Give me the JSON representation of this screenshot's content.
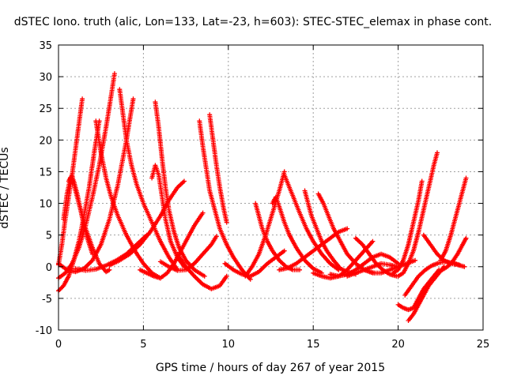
{
  "chart_data": {
    "type": "scatter",
    "title": "dSTEC Iono. truth (alic, Lon=133, Lat=-23, h=603): STEC-STEC_elemax in phase cont.",
    "xlabel": "GPS time / hours of day 267 of year 2015",
    "ylabel": "dSTEC  / TECUs",
    "xlim": [
      0,
      25
    ],
    "ylim": [
      -10,
      35
    ],
    "xticks": [
      "0",
      "5",
      "10",
      "15",
      "20",
      "25"
    ],
    "yticks": [
      "-10",
      "-5",
      "0",
      "5",
      "10",
      "15",
      "20",
      "25",
      "30",
      "35"
    ],
    "grid": true,
    "marker": "+",
    "color": "#ff0000",
    "series": [
      {
        "x": [
          0.0,
          0.2,
          0.4,
          0.6,
          0.8,
          1.0,
          1.2,
          1.4
        ],
        "y": [
          0.3,
          3.5,
          7.5,
          11.0,
          14.5,
          18.5,
          22.5,
          26.5
        ]
      },
      {
        "x": [
          0.0,
          0.3,
          0.6,
          0.9,
          1.2,
          1.5,
          1.8,
          2.1,
          2.4
        ],
        "y": [
          -3.8,
          -3.0,
          -1.5,
          1.0,
          4.0,
          8.0,
          12.5,
          18.0,
          23.0
        ]
      },
      {
        "x": [
          0.0,
          0.4,
          0.8,
          1.2,
          1.6,
          2.0,
          2.4,
          2.8,
          3.1,
          3.3
        ],
        "y": [
          -1.8,
          -1.0,
          0.5,
          3.0,
          6.5,
          11.0,
          16.0,
          22.0,
          27.0,
          30.5
        ]
      },
      {
        "x": [
          0.0,
          0.5,
          1.0,
          1.5,
          2.0,
          2.5,
          3.0,
          3.5,
          4.0,
          4.4
        ],
        "y": [
          0.5,
          -0.5,
          -0.8,
          -0.3,
          1.0,
          3.5,
          7.5,
          13.0,
          20.0,
          26.5
        ]
      },
      {
        "x": [
          0.3,
          0.5,
          0.7,
          0.9,
          1.1,
          1.3,
          1.5,
          1.7,
          2.0
        ],
        "y": [
          7.5,
          11.5,
          14.0,
          13.5,
          11.5,
          9.0,
          6.5,
          4.5,
          2.0
        ]
      },
      {
        "x": [
          0.6,
          0.8,
          1.0,
          1.3,
          1.6,
          2.0,
          2.4,
          2.8,
          3.0
        ],
        "y": [
          13.5,
          14.5,
          12.0,
          9.0,
          6.0,
          3.0,
          0.5,
          -0.8,
          -0.5
        ]
      },
      {
        "x": [
          2.2,
          2.5,
          2.8,
          3.1,
          3.5,
          4.0,
          4.5,
          5.0,
          5.5,
          6.0
        ],
        "y": [
          23.0,
          18.0,
          14.0,
          11.0,
          8.0,
          5.0,
          2.5,
          0.5,
          -1.0,
          -1.8
        ]
      },
      {
        "x": [
          3.6,
          3.8,
          4.0,
          4.3,
          4.6,
          5.0,
          5.5,
          6.0,
          6.5,
          7.0
        ],
        "y": [
          28.0,
          24.0,
          20.0,
          16.0,
          13.0,
          10.0,
          7.0,
          4.0,
          1.5,
          -0.5
        ]
      },
      {
        "x": [
          1.0,
          1.6,
          2.2,
          2.8,
          3.4,
          4.0,
          4.6,
          5.2
        ],
        "y": [
          -0.3,
          -0.6,
          -0.4,
          0.2,
          1.0,
          2.0,
          3.5,
          5.0
        ]
      },
      {
        "x": [
          3.0,
          3.6,
          4.2,
          4.8,
          5.4,
          6.0,
          6.5,
          7.0,
          7.4
        ],
        "y": [
          0.2,
          1.0,
          2.0,
          3.5,
          5.5,
          8.0,
          10.5,
          12.5,
          13.5
        ]
      },
      {
        "x": [
          5.7,
          5.9,
          6.1,
          6.3,
          6.5,
          6.8,
          7.1,
          7.5,
          8.0,
          8.6
        ],
        "y": [
          26.0,
          22.0,
          17.0,
          12.5,
          9.0,
          5.5,
          3.0,
          1.0,
          -0.5,
          -1.5
        ]
      },
      {
        "x": [
          5.5,
          5.7,
          5.9,
          6.1,
          6.3,
          6.6,
          7.0,
          7.4
        ],
        "y": [
          14.0,
          16.0,
          14.5,
          11.0,
          7.5,
          4.0,
          1.5,
          0.0
        ]
      },
      {
        "x": [
          4.8,
          5.2,
          5.6,
          6.0,
          6.4,
          6.8,
          7.2,
          7.6,
          8.0,
          8.5
        ],
        "y": [
          -0.5,
          -1.0,
          -1.5,
          -1.8,
          -1.0,
          0.5,
          2.5,
          4.5,
          6.5,
          8.5
        ]
      },
      {
        "x": [
          6.0,
          6.5,
          7.0,
          7.5,
          8.0,
          8.5,
          9.0,
          9.3
        ],
        "y": [
          0.8,
          0.0,
          -0.6,
          -0.5,
          0.5,
          2.0,
          3.5,
          4.8
        ]
      },
      {
        "x": [
          8.3,
          8.5,
          8.7,
          8.9,
          9.2,
          9.5,
          9.9,
          10.3,
          10.8,
          11.3
        ],
        "y": [
          23.0,
          19.0,
          15.5,
          12.0,
          9.0,
          6.0,
          3.5,
          1.5,
          -0.5,
          -2.0
        ]
      },
      {
        "x": [
          8.9,
          9.1,
          9.3,
          9.5,
          9.7,
          9.9
        ],
        "y": [
          24.0,
          20.0,
          16.0,
          12.5,
          9.5,
          7.0
        ]
      },
      {
        "x": [
          7.0,
          7.5,
          8.0,
          8.5,
          9.0,
          9.5,
          9.9
        ],
        "y": [
          2.0,
          0.0,
          -1.5,
          -2.8,
          -3.5,
          -3.0,
          -1.5
        ]
      },
      {
        "x": [
          9.8,
          10.3,
          10.8,
          11.3,
          11.8,
          12.3,
          12.8,
          13.3
        ],
        "y": [
          0.5,
          -0.5,
          -1.2,
          -1.5,
          -0.8,
          0.5,
          1.5,
          2.5
        ]
      },
      {
        "x": [
          11.6,
          11.8,
          12.0,
          12.3,
          12.6,
          13.0,
          13.4,
          13.8,
          14.2
        ],
        "y": [
          10.0,
          8.0,
          6.0,
          4.0,
          2.5,
          1.0,
          0.0,
          -0.5,
          -0.5
        ]
      },
      {
        "x": [
          11.0,
          11.4,
          11.8,
          12.2,
          12.6,
          13.0,
          13.3
        ],
        "y": [
          -1.5,
          0.0,
          2.0,
          5.0,
          8.5,
          12.0,
          15.0
        ]
      },
      {
        "x": [
          12.6,
          12.8,
          13.0,
          13.3,
          13.6,
          14.0,
          14.5,
          15.0,
          15.5
        ],
        "y": [
          10.0,
          11.0,
          9.5,
          7.0,
          5.0,
          3.0,
          1.0,
          -0.3,
          -1.0
        ]
      },
      {
        "x": [
          13.3,
          13.6,
          13.9,
          14.2,
          14.6,
          15.0,
          15.5,
          16.0,
          16.5
        ],
        "y": [
          14.5,
          12.5,
          10.5,
          8.5,
          6.0,
          4.0,
          2.0,
          0.5,
          -0.5
        ]
      },
      {
        "x": [
          14.5,
          14.7,
          14.9,
          15.2,
          15.5,
          15.8,
          16.2,
          16.6,
          17.0,
          17.5
        ],
        "y": [
          12.0,
          10.0,
          8.0,
          6.0,
          4.0,
          2.5,
          1.0,
          -0.3,
          -0.8,
          -1.2
        ]
      },
      {
        "x": [
          15.3,
          15.6,
          15.9,
          16.2,
          16.6,
          17.0,
          17.5,
          18.0,
          18.6
        ],
        "y": [
          11.5,
          10.0,
          8.0,
          6.0,
          4.0,
          2.0,
          0.5,
          -0.5,
          -1.0
        ]
      },
      {
        "x": [
          13.0,
          13.5,
          14.0,
          14.5,
          15.0,
          15.5,
          16.0,
          16.5,
          17.0
        ],
        "y": [
          -0.5,
          -0.2,
          0.5,
          1.5,
          2.5,
          3.5,
          4.5,
          5.5,
          6.0
        ]
      },
      {
        "x": [
          15.0,
          15.5,
          16.0,
          16.5,
          17.0,
          17.5,
          18.0,
          18.5
        ],
        "y": [
          -1.0,
          -1.5,
          -1.8,
          -1.5,
          -0.5,
          1.0,
          2.5,
          4.0
        ]
      },
      {
        "x": [
          16.0,
          16.5,
          17.0,
          17.5,
          18.0,
          18.5,
          19.0,
          19.5,
          20.0
        ],
        "y": [
          -1.2,
          -1.5,
          -1.2,
          -0.5,
          0.5,
          1.5,
          2.0,
          1.5,
          0.5
        ]
      },
      {
        "x": [
          17.5,
          17.9,
          18.3,
          18.7,
          19.1,
          19.5,
          19.9
        ],
        "y": [
          4.5,
          3.5,
          2.0,
          0.5,
          -0.5,
          -1.2,
          -1.5
        ]
      },
      {
        "x": [
          18.0,
          18.5,
          19.0,
          19.5,
          20.0
        ],
        "y": [
          -0.5,
          -1.0,
          -1.0,
          -0.5,
          0.0
        ]
      },
      {
        "x": [
          17.0,
          17.5,
          18.0,
          18.5,
          19.0,
          19.5,
          20.0,
          20.5,
          21.0
        ],
        "y": [
          -1.5,
          -1.0,
          -0.5,
          0.0,
          0.5,
          0.3,
          0.0,
          0.5,
          1.0
        ]
      },
      {
        "x": [
          20.0,
          20.3,
          20.6,
          20.9,
          21.2,
          21.5,
          21.8,
          22.1,
          22.3
        ],
        "y": [
          -1.5,
          -1.0,
          0.5,
          2.5,
          5.5,
          9.0,
          12.5,
          16.0,
          18.0
        ]
      },
      {
        "x": [
          19.7,
          20.0,
          20.3,
          20.6,
          20.9,
          21.2,
          21.4
        ],
        "y": [
          -1.0,
          -0.5,
          1.0,
          3.5,
          7.0,
          10.5,
          13.5
        ]
      },
      {
        "x": [
          20.0,
          20.3,
          20.6,
          20.9,
          21.2,
          21.5,
          21.8,
          22.1,
          22.4
        ],
        "y": [
          -6.0,
          -6.5,
          -6.8,
          -6.5,
          -5.0,
          -3.5,
          -2.5,
          -1.5,
          -0.5
        ]
      },
      {
        "x": [
          20.6,
          20.9,
          21.2,
          21.5,
          21.8,
          22.1,
          22.4,
          22.7
        ],
        "y": [
          -8.5,
          -7.5,
          -6.0,
          -4.5,
          -3.0,
          -2.0,
          -1.0,
          0.0
        ]
      },
      {
        "x": [
          20.4,
          20.8,
          21.2,
          21.6,
          22.0,
          22.4,
          22.8,
          23.2,
          23.6
        ],
        "y": [
          -4.5,
          -3.0,
          -1.5,
          -0.5,
          0.2,
          0.6,
          0.8,
          0.6,
          0.3
        ]
      },
      {
        "x": [
          21.5,
          21.9,
          22.3,
          22.7,
          23.1,
          23.5,
          23.9
        ],
        "y": [
          5.0,
          3.5,
          2.0,
          1.0,
          0.5,
          0.3,
          0.0
        ]
      },
      {
        "x": [
          22.5,
          22.8,
          23.1,
          23.4,
          23.7,
          24.0
        ],
        "y": [
          1.0,
          2.5,
          5.0,
          8.0,
          11.0,
          14.0
        ]
      },
      {
        "x": [
          22.3,
          22.6,
          22.9,
          23.2,
          23.5,
          23.8,
          24.0
        ],
        "y": [
          -1.0,
          -0.5,
          0.0,
          0.8,
          2.0,
          3.5,
          4.5
        ]
      }
    ]
  }
}
